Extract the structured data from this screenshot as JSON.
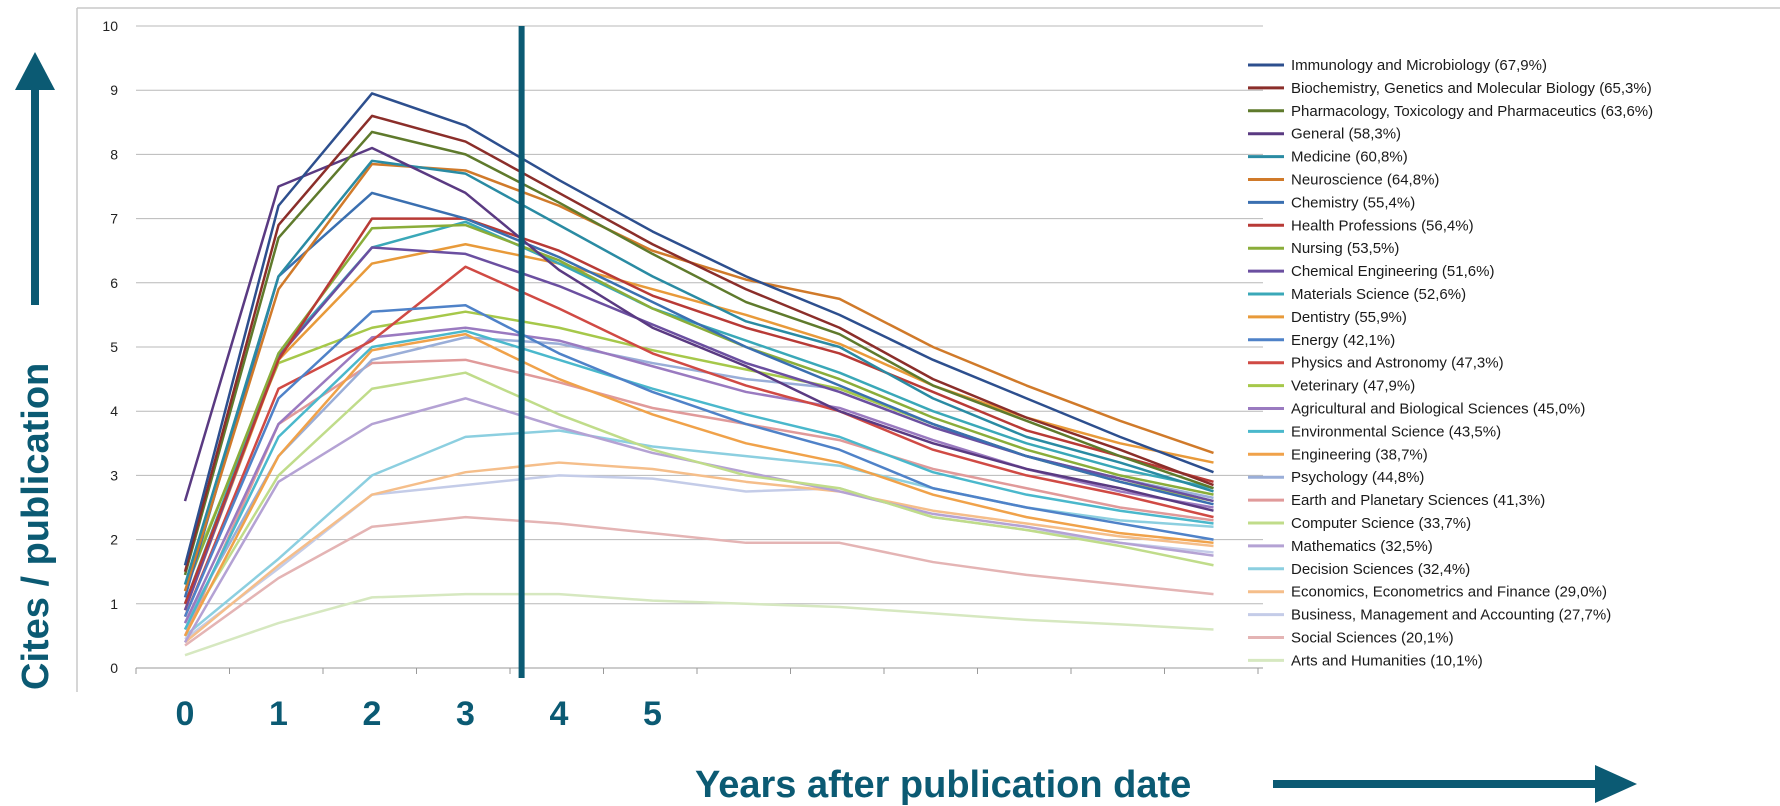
{
  "chart_data": {
    "type": "line",
    "xlabel": "Years after publication date",
    "ylabel": "Cites / publication",
    "ylim": [
      0,
      10
    ],
    "yticks": [
      "0",
      "1",
      "2",
      "3",
      "4",
      "5",
      "6",
      "7",
      "8",
      "9",
      "10"
    ],
    "x_tick_labels": [
      "0",
      "1",
      "2",
      "3",
      "4",
      "5"
    ],
    "x_points": 12,
    "marker_line_x": 3.6,
    "legend_position": "right",
    "accent_color": "#0b5a73",
    "series": [
      {
        "name": "Immunology and Microbiology (67,9%)",
        "color": "#2d4f8e",
        "values": [
          1.6,
          7.2,
          8.95,
          8.45,
          7.6,
          6.8,
          6.1,
          5.5,
          4.8,
          4.2,
          3.6,
          3.05
        ]
      },
      {
        "name": "Biochemistry, Genetics and Molecular Biology (65,3%)",
        "color": "#8b2e2a",
        "values": [
          1.5,
          6.9,
          8.6,
          8.2,
          7.4,
          6.6,
          5.9,
          5.3,
          4.5,
          3.9,
          3.4,
          2.85
        ]
      },
      {
        "name": "Pharmacology, Toxicology and Pharmaceutics (63,6%)",
        "color": "#5f7a2c",
        "values": [
          1.45,
          6.7,
          8.35,
          8.0,
          7.25,
          6.45,
          5.7,
          5.2,
          4.4,
          3.85,
          3.3,
          2.8
        ]
      },
      {
        "name": "General (58,3%)",
        "color": "#5a3a82",
        "values": [
          2.6,
          7.5,
          8.1,
          7.4,
          6.2,
          5.3,
          4.7,
          4.0,
          3.5,
          3.1,
          2.8,
          2.45
        ]
      },
      {
        "name": "Medicine (60,8%)",
        "color": "#2a8ba3",
        "values": [
          1.3,
          6.1,
          7.9,
          7.7,
          6.9,
          6.1,
          5.4,
          5.0,
          4.2,
          3.6,
          3.2,
          2.75
        ]
      },
      {
        "name": "Neuroscience (64,8%)",
        "color": "#d07a2a",
        "values": [
          1.2,
          5.9,
          7.85,
          7.75,
          7.2,
          6.5,
          6.05,
          5.75,
          5.0,
          4.4,
          3.85,
          3.35
        ]
      },
      {
        "name": "Chemistry (55,4%)",
        "color": "#3a6fb0",
        "values": [
          1.1,
          6.1,
          7.4,
          7.0,
          6.4,
          5.7,
          5.0,
          4.4,
          3.8,
          3.3,
          2.9,
          2.55
        ]
      },
      {
        "name": "Health Professions (56,4%)",
        "color": "#b83a36",
        "values": [
          1.0,
          4.8,
          7.0,
          7.0,
          6.5,
          5.8,
          5.3,
          4.9,
          4.3,
          3.7,
          3.3,
          2.9
        ]
      },
      {
        "name": "Nursing (53,5%)",
        "color": "#8aad3a",
        "values": [
          1.2,
          4.9,
          6.85,
          6.9,
          6.35,
          5.6,
          5.0,
          4.5,
          3.9,
          3.4,
          3.0,
          2.7
        ]
      },
      {
        "name": "Chemical Engineering (51,6%)",
        "color": "#6b4fa0",
        "values": [
          0.9,
          4.85,
          6.55,
          6.45,
          5.95,
          5.35,
          4.75,
          4.3,
          3.75,
          3.3,
          2.95,
          2.6
        ]
      },
      {
        "name": "Materials Science (52,6%)",
        "color": "#3aa8b8",
        "values": [
          1.0,
          4.9,
          6.55,
          6.95,
          6.3,
          5.6,
          5.1,
          4.6,
          4.0,
          3.5,
          3.1,
          2.8
        ]
      },
      {
        "name": "Dentistry  (55,9%)",
        "color": "#e89a3a",
        "values": [
          0.9,
          4.8,
          6.3,
          6.6,
          6.3,
          5.9,
          5.5,
          5.05,
          4.4,
          3.9,
          3.5,
          3.2
        ]
      },
      {
        "name": "Energy (42,1%)",
        "color": "#4f82c8",
        "values": [
          0.8,
          4.2,
          5.55,
          5.65,
          4.9,
          4.3,
          3.8,
          3.4,
          2.8,
          2.5,
          2.25,
          2.0
        ]
      },
      {
        "name": "Physics and Astronomy  (47,3%)",
        "color": "#d04a44",
        "values": [
          0.8,
          4.35,
          5.1,
          6.25,
          5.6,
          4.9,
          4.4,
          4.0,
          3.4,
          3.0,
          2.7,
          2.35
        ]
      },
      {
        "name": "Veterinary (47,9%)",
        "color": "#a6c84a",
        "values": [
          1.3,
          4.75,
          5.3,
          5.55,
          5.3,
          4.95,
          4.65,
          4.35,
          3.8,
          3.3,
          2.9,
          2.6
        ]
      },
      {
        "name": "Agricultural and Biological Sciences (45,0%)",
        "color": "#9a7ac0",
        "values": [
          0.7,
          3.8,
          5.15,
          5.3,
          5.1,
          4.7,
          4.3,
          4.05,
          3.55,
          3.1,
          2.75,
          2.5
        ]
      },
      {
        "name": "Environmental Science (43,5%)",
        "color": "#4ab8cc",
        "values": [
          0.6,
          3.6,
          5.0,
          5.25,
          4.8,
          4.35,
          3.95,
          3.6,
          3.05,
          2.7,
          2.45,
          2.25
        ]
      },
      {
        "name": "Engineering (38,7%)",
        "color": "#f0a24a",
        "values": [
          0.5,
          3.3,
          4.95,
          5.2,
          4.5,
          3.95,
          3.5,
          3.2,
          2.7,
          2.35,
          2.1,
          1.95
        ]
      },
      {
        "name": "Psychology (44,8%)",
        "color": "#9aaed8",
        "values": [
          0.7,
          3.3,
          4.8,
          5.15,
          5.05,
          4.75,
          4.5,
          4.35,
          3.8,
          3.3,
          2.95,
          2.65
        ]
      },
      {
        "name": "Earth and Planetary Sciences (41,3%)",
        "color": "#e09a9a",
        "values": [
          0.5,
          3.8,
          4.75,
          4.8,
          4.45,
          4.05,
          3.8,
          3.55,
          3.1,
          2.8,
          2.5,
          2.3
        ]
      },
      {
        "name": "Computer Science (33,7%)",
        "color": "#c0dc8a",
        "values": [
          0.6,
          3.0,
          4.35,
          4.6,
          3.95,
          3.4,
          3.0,
          2.8,
          2.35,
          2.15,
          1.9,
          1.6
        ]
      },
      {
        "name": "Mathematics (32,5%)",
        "color": "#b4a2d4",
        "values": [
          0.4,
          2.9,
          3.8,
          4.2,
          3.75,
          3.35,
          3.05,
          2.75,
          2.4,
          2.2,
          1.95,
          1.75
        ]
      },
      {
        "name": "Decision Sciences (32,4%)",
        "color": "#8ccfe0",
        "values": [
          0.5,
          1.7,
          3.0,
          3.6,
          3.7,
          3.45,
          3.3,
          3.15,
          2.8,
          2.5,
          2.3,
          2.2
        ]
      },
      {
        "name": "Economics, Econometrics and Finance (29,0%)",
        "color": "#f5be8a",
        "values": [
          0.4,
          1.6,
          2.7,
          3.05,
          3.2,
          3.1,
          2.9,
          2.75,
          2.45,
          2.25,
          2.05,
          1.9
        ]
      },
      {
        "name": "Business, Management and Accounting (27,7%)",
        "color": "#c4cce8",
        "values": [
          0.45,
          1.55,
          2.7,
          2.85,
          3.0,
          2.95,
          2.75,
          2.8,
          2.35,
          2.15,
          1.95,
          1.8
        ]
      },
      {
        "name": "Social Sciences (20,1%)",
        "color": "#e4b4b4",
        "values": [
          0.35,
          1.4,
          2.2,
          2.35,
          2.25,
          2.1,
          1.95,
          1.95,
          1.65,
          1.45,
          1.3,
          1.15
        ]
      },
      {
        "name": "Arts and Humanities  (10,1%)",
        "color": "#d6e8c0",
        "values": [
          0.2,
          0.7,
          1.1,
          1.15,
          1.15,
          1.05,
          1.0,
          0.95,
          0.85,
          0.75,
          0.68,
          0.6
        ]
      }
    ]
  }
}
